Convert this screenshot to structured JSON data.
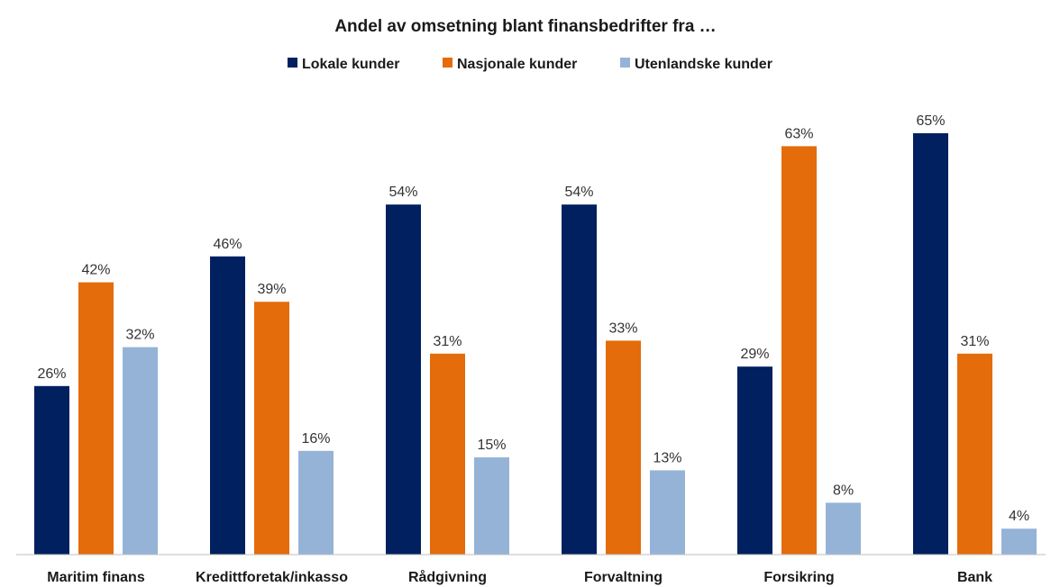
{
  "chart_data": {
    "type": "bar",
    "title": "Andel av omsetning blant finansbedrifter fra …",
    "xlabel": "",
    "ylabel": "",
    "ylim": [
      0,
      70
    ],
    "grid": false,
    "legend_position": "top",
    "categories": [
      "Maritim finans",
      "Kredittforetak/inkasso",
      "Rådgivning",
      "Forvaltning",
      "Forsikring",
      "Bank"
    ],
    "series": [
      {
        "name": "Lokale kunder",
        "color": "#002060",
        "values": [
          26,
          46,
          54,
          54,
          29,
          65
        ],
        "labels": [
          "26%",
          "46%",
          "54%",
          "54%",
          "29%",
          "65%"
        ]
      },
      {
        "name": "Nasjonale kunder",
        "color": "#E46C0A",
        "values": [
          42,
          39,
          31,
          33,
          63,
          31
        ],
        "labels": [
          "42%",
          "39%",
          "31%",
          "33%",
          "63%",
          "31%"
        ]
      },
      {
        "name": "Utenlandske kunder",
        "color": "#95B3D7",
        "values": [
          32,
          16,
          15,
          13,
          8,
          4
        ],
        "labels": [
          "32%",
          "16%",
          "15%",
          "13%",
          "8%",
          "4%"
        ]
      }
    ]
  }
}
